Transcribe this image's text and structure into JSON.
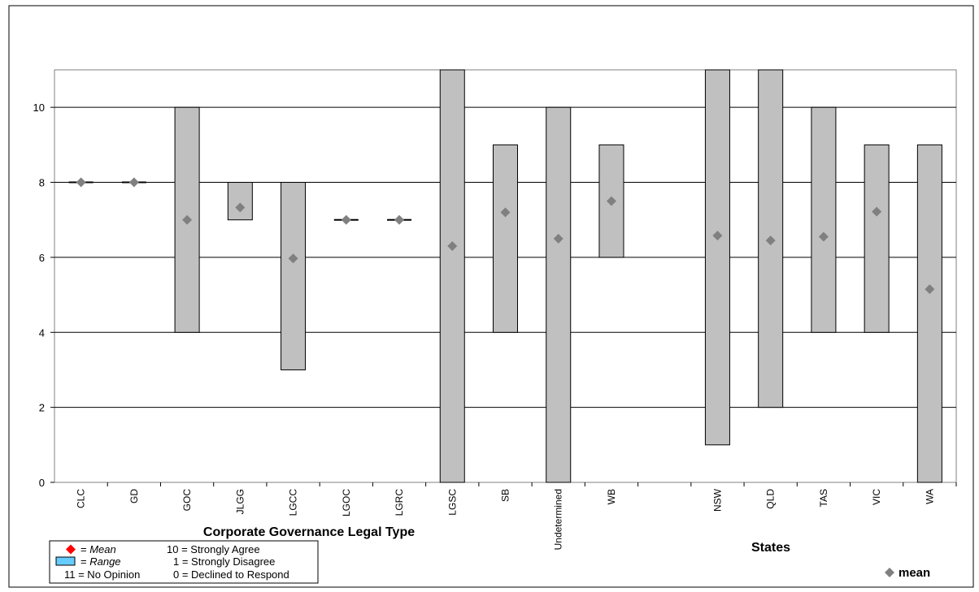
{
  "chart_data": {
    "type": "bar",
    "title": "",
    "ylim": [
      0,
      11
    ],
    "y_ticks": [
      0,
      2,
      4,
      6,
      8,
      10
    ],
    "grid": "horizontal",
    "groups": [
      {
        "title": "Corporate Governance Legal Type",
        "categories": [
          "CLC",
          "GD",
          "GOC",
          "JLGG",
          "LGCC",
          "LGOC",
          "LGRC",
          "LGSC",
          "SB",
          "Undetermined",
          "WB"
        ]
      },
      {
        "title": "States",
        "categories": [
          "NSW",
          "QLD",
          "TAS",
          "VIC",
          "WA"
        ]
      }
    ],
    "series": [
      {
        "name": "Range (min)",
        "values": [
          8,
          8,
          4,
          7,
          3,
          7,
          7,
          0,
          4,
          0,
          6,
          1,
          2,
          4,
          4,
          0
        ]
      },
      {
        "name": "Range (max)",
        "values": [
          8,
          8,
          10,
          8,
          8,
          7,
          7,
          11,
          9,
          10,
          9,
          11,
          11,
          10,
          9,
          9
        ]
      },
      {
        "name": "mean",
        "values": [
          8,
          8,
          7,
          7.33,
          5.97,
          7,
          7,
          6.3,
          7.2,
          6.5,
          7.5,
          6.58,
          6.45,
          6.55,
          7.22,
          5.15
        ]
      }
    ],
    "range_color": "#c0c0c0",
    "mean_color": "#808080",
    "series_legend": {
      "label": "mean",
      "position": "bottom-right"
    },
    "key_legend": {
      "position": "bottom-left",
      "mean_symbol_color": "#ff0000",
      "range_symbol_color": "#66ccff",
      "items": [
        {
          "symbol": "mean",
          "prefix": "= ",
          "italic": "Mean",
          "description": "10 = Strongly Agree"
        },
        {
          "symbol": "range",
          "prefix": "= ",
          "italic": "Range",
          "description": "1 = Strongly Disagree"
        },
        {
          "symbol": "",
          "prefix": "11 = No Opinion",
          "italic": "",
          "description": "0 = Declined to Respond"
        }
      ]
    }
  }
}
